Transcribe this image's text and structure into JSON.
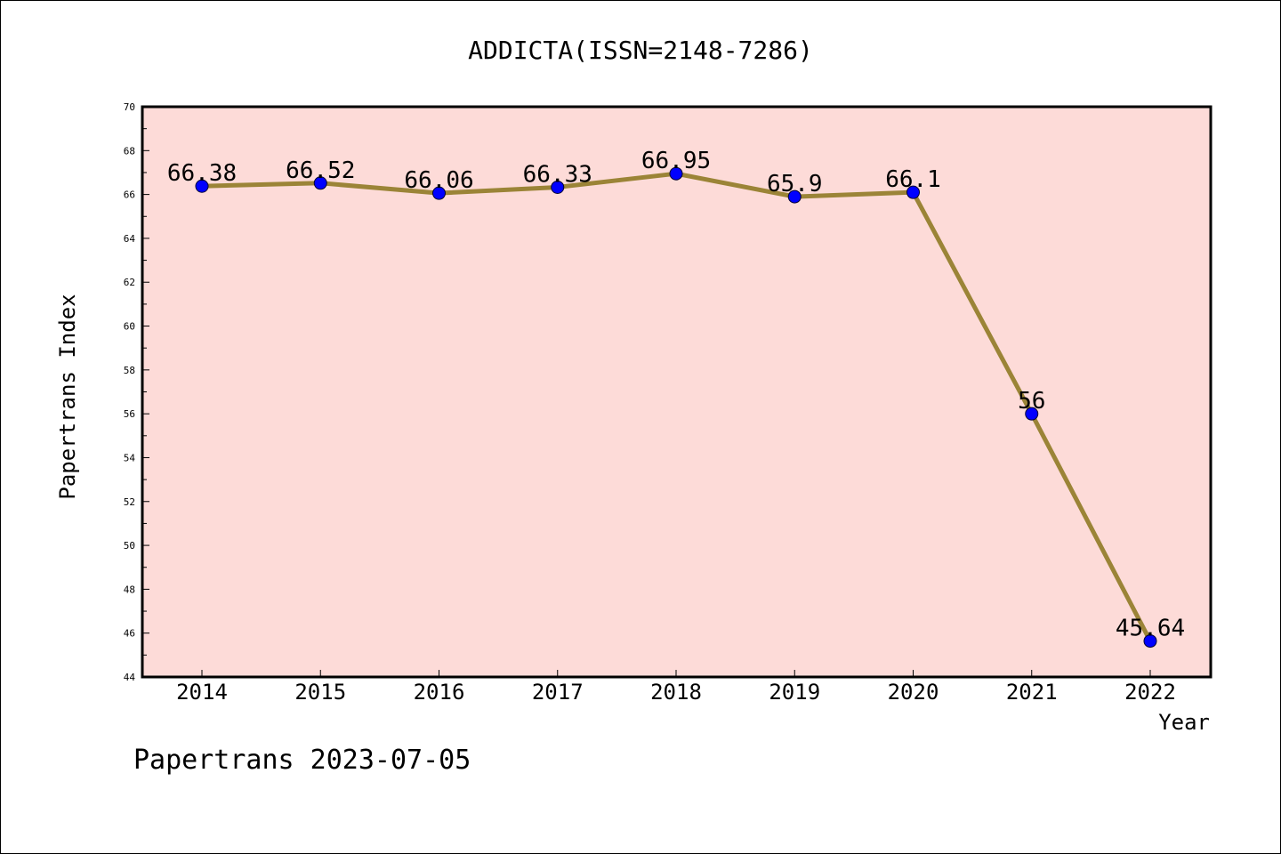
{
  "chart_data": {
    "type": "line",
    "title": "ADDICTA(ISSN=2148-7286)",
    "xlabel": "Year",
    "ylabel": "Papertrans Index",
    "categories": [
      "2014",
      "2015",
      "2016",
      "2017",
      "2018",
      "2019",
      "2020",
      "2021",
      "2022"
    ],
    "values": [
      66.38,
      66.52,
      66.06,
      66.33,
      66.95,
      65.9,
      66.1,
      56,
      45.64
    ],
    "data_labels": [
      "66.38",
      "66.52",
      "66.06",
      "66.33",
      "66.95",
      "65.9",
      "66.1",
      "56",
      "45.64"
    ],
    "ylim": [
      44,
      70
    ],
    "yticks": [
      "44",
      "46",
      "48",
      "50",
      "52",
      "54",
      "56",
      "58",
      "60",
      "62",
      "64",
      "66",
      "68",
      "70"
    ],
    "colors": {
      "plot_bg": "#fddbd8",
      "line": "#9b8437",
      "marker": "#0000ff"
    },
    "grid": false,
    "legend": "none"
  },
  "footer": {
    "watermark": "Papertrans 2023-07-05"
  }
}
